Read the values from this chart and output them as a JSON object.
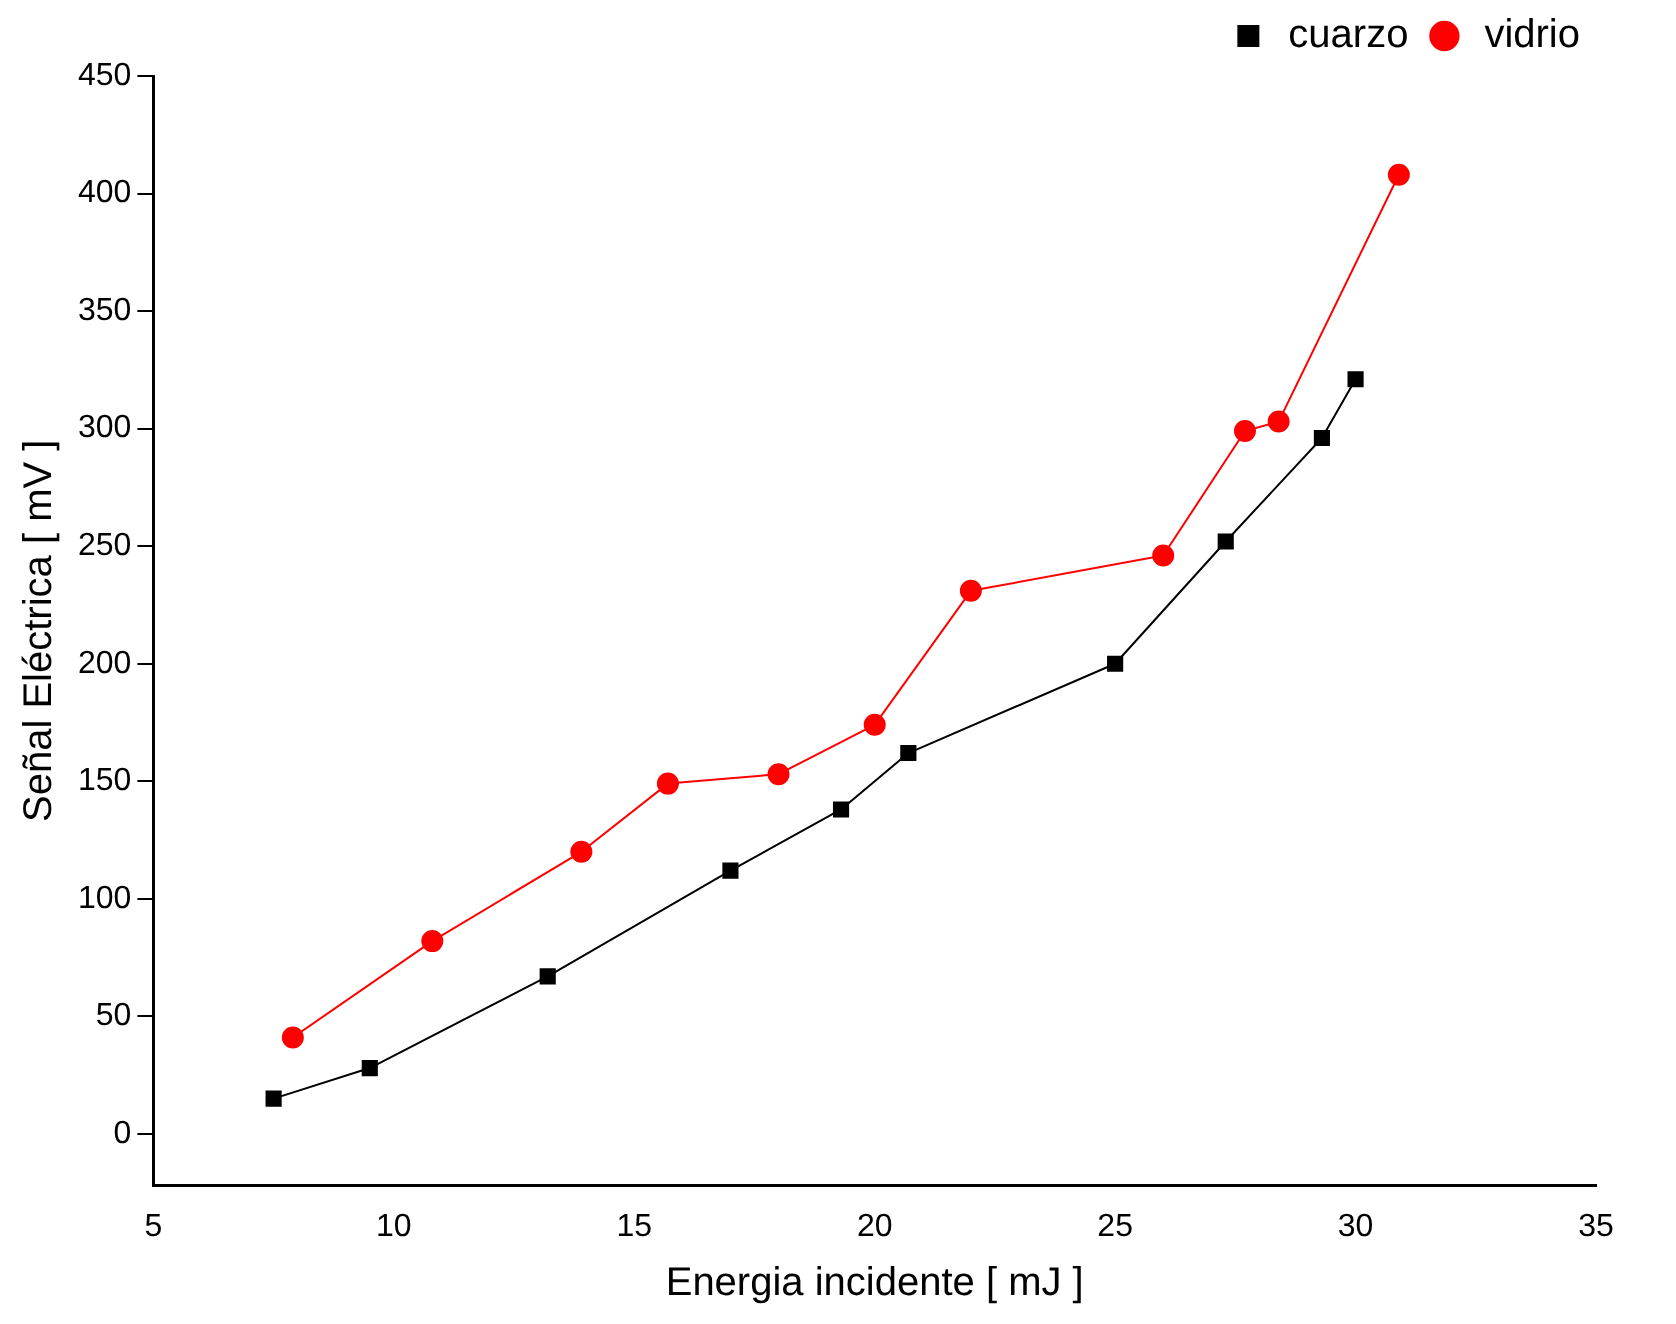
{
  "chart_data": {
    "type": "line",
    "xlabel": "Energia incidente [ mJ ]",
    "ylabel": "Señal Eléctrica [ mV ]",
    "xlim": [
      5,
      35
    ],
    "xticks": [
      5,
      10,
      15,
      20,
      25,
      30,
      35
    ],
    "ylim": [
      -22,
      450
    ],
    "yticks": [
      0,
      50,
      100,
      150,
      200,
      250,
      300,
      350,
      400,
      450
    ],
    "grid": false,
    "legend": "top right",
    "series": [
      {
        "name": "cuarzo",
        "color": "#000000",
        "marker": "square",
        "x": [
          7.5,
          9.5,
          13.2,
          17.0,
          19.3,
          20.7,
          25.0,
          27.3,
          29.3,
          30.0
        ],
        "values": [
          15,
          28,
          67,
          112,
          138,
          162,
          200,
          252,
          296,
          321
        ]
      },
      {
        "name": "vidrio",
        "color": "#ff0000",
        "marker": "circle",
        "x": [
          7.9,
          10.8,
          13.9,
          15.7,
          18.0,
          20.0,
          22.0,
          26.0,
          27.7,
          28.4,
          30.9
        ],
        "values": [
          41,
          82,
          120,
          149,
          153,
          174,
          231,
          246,
          299,
          303,
          408
        ]
      }
    ]
  }
}
